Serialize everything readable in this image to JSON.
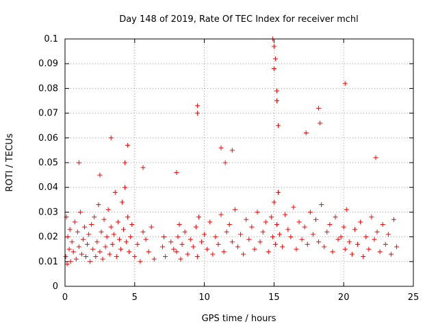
{
  "chart_data": {
    "type": "scatter",
    "title": "Day 148 of 2019, Rate Of TEC Index for receiver mchl",
    "xlabel": "GPS time / hours",
    "ylabel": "ROTI / TECUs",
    "xlim": [
      0,
      25
    ],
    "ylim": [
      0,
      0.1
    ],
    "x_ticks": [
      0,
      5,
      10,
      15,
      20,
      25
    ],
    "x_tick_labels": [
      "0",
      "5",
      "10",
      "15",
      "20",
      "25"
    ],
    "y_ticks": [
      0,
      0.01,
      0.02,
      0.03,
      0.04,
      0.05,
      0.06,
      0.07,
      0.08,
      0.09,
      0.1
    ],
    "y_tick_labels": [
      "0",
      "0.01",
      "0.02",
      "0.03",
      "0.04",
      "0.05",
      "0.06",
      "0.07",
      "0.08",
      "0.09",
      "0.1"
    ],
    "grid": true,
    "marker": "+",
    "color": "#ff0000",
    "series": [
      {
        "name": "ROTI",
        "x": [
          0.05,
          0.1,
          0.15,
          0.2,
          0.3,
          0.35,
          0.4,
          0.5,
          0.6,
          0.7,
          0.8,
          0.9,
          1.0,
          1.1,
          1.2,
          1.3,
          1.4,
          1.5,
          1.6,
          1.7,
          1.8,
          1.9,
          2.0,
          2.1,
          2.2,
          2.3,
          2.4,
          2.5,
          2.6,
          2.7,
          2.8,
          2.9,
          3.0,
          3.1,
          3.2,
          3.3,
          3.4,
          3.5,
          3.6,
          3.7,
          3.8,
          3.9,
          4.0,
          4.1,
          4.2,
          4.3,
          4.4,
          4.5,
          4.6,
          4.7,
          4.8,
          5.0,
          5.2,
          5.4,
          5.6,
          5.8,
          6.0,
          6.2,
          6.4,
          7.0,
          7.1,
          7.2,
          7.6,
          7.8,
          8.0,
          8.1,
          8.2,
          8.3,
          8.4,
          8.6,
          8.8,
          9.0,
          9.2,
          9.4,
          9.5,
          9.6,
          9.8,
          10.0,
          10.2,
          10.4,
          10.6,
          10.8,
          11.0,
          11.2,
          11.4,
          11.6,
          11.8,
          12.0,
          12.2,
          12.4,
          12.6,
          12.8,
          13.0,
          13.2,
          13.4,
          13.6,
          13.8,
          14.0,
          14.2,
          14.4,
          14.6,
          14.8,
          14.9,
          15.0,
          15.1,
          15.2,
          15.3,
          15.4,
          15.6,
          15.8,
          16.0,
          16.2,
          16.4,
          16.6,
          16.8,
          17.0,
          17.2,
          17.4,
          17.6,
          17.8,
          18.0,
          18.2,
          18.4,
          18.6,
          18.8,
          19.0,
          19.2,
          19.4,
          19.6,
          19.8,
          20.0,
          20.1,
          20.2,
          20.4,
          20.6,
          20.8,
          21.0,
          21.2,
          21.4,
          21.6,
          21.8,
          22.0,
          22.2,
          22.4,
          22.6,
          22.8,
          23.0,
          23.2,
          23.4,
          23.6,
          23.8,
          3.3,
          4.5,
          9.5,
          9.5,
          11.2,
          11.5,
          12.0,
          14.9,
          15.0,
          15.0,
          15.1,
          15.2,
          15.2,
          15.3,
          17.3,
          18.2,
          18.3,
          20.1,
          22.3,
          1.0,
          2.5,
          4.3,
          5.6,
          8.0
        ],
        "y": [
          0.012,
          0.028,
          0.009,
          0.02,
          0.015,
          0.023,
          0.01,
          0.018,
          0.014,
          0.026,
          0.011,
          0.022,
          0.016,
          0.03,
          0.013,
          0.019,
          0.024,
          0.012,
          0.017,
          0.021,
          0.01,
          0.025,
          0.015,
          0.028,
          0.012,
          0.018,
          0.033,
          0.014,
          0.022,
          0.011,
          0.027,
          0.016,
          0.02,
          0.031,
          0.013,
          0.024,
          0.017,
          0.021,
          0.038,
          0.012,
          0.026,
          0.019,
          0.015,
          0.034,
          0.023,
          0.04,
          0.018,
          0.028,
          0.014,
          0.02,
          0.025,
          0.012,
          0.017,
          0.01,
          0.022,
          0.019,
          0.014,
          0.024,
          0.011,
          0.016,
          0.02,
          0.012,
          0.018,
          0.015,
          0.014,
          0.02,
          0.025,
          0.011,
          0.017,
          0.022,
          0.013,
          0.019,
          0.016,
          0.024,
          0.012,
          0.028,
          0.018,
          0.021,
          0.015,
          0.026,
          0.013,
          0.02,
          0.017,
          0.029,
          0.014,
          0.022,
          0.025,
          0.018,
          0.031,
          0.016,
          0.021,
          0.013,
          0.027,
          0.019,
          0.024,
          0.015,
          0.03,
          0.018,
          0.022,
          0.026,
          0.014,
          0.028,
          0.02,
          0.034,
          0.017,
          0.025,
          0.038,
          0.021,
          0.016,
          0.029,
          0.023,
          0.02,
          0.032,
          0.015,
          0.026,
          0.019,
          0.024,
          0.017,
          0.03,
          0.021,
          0.027,
          0.018,
          0.033,
          0.016,
          0.022,
          0.025,
          0.014,
          0.028,
          0.019,
          0.02,
          0.024,
          0.015,
          0.031,
          0.018,
          0.013,
          0.023,
          0.017,
          0.026,
          0.012,
          0.02,
          0.015,
          0.028,
          0.019,
          0.022,
          0.014,
          0.025,
          0.017,
          0.021,
          0.013,
          0.027,
          0.016,
          0.06,
          0.057,
          0.073,
          0.07,
          0.056,
          0.05,
          0.055,
          0.1,
          0.097,
          0.088,
          0.092,
          0.079,
          0.075,
          0.065,
          0.062,
          0.072,
          0.066,
          0.082,
          0.052,
          0.05,
          0.045,
          0.05,
          0.048,
          0.046
        ]
      }
    ]
  }
}
